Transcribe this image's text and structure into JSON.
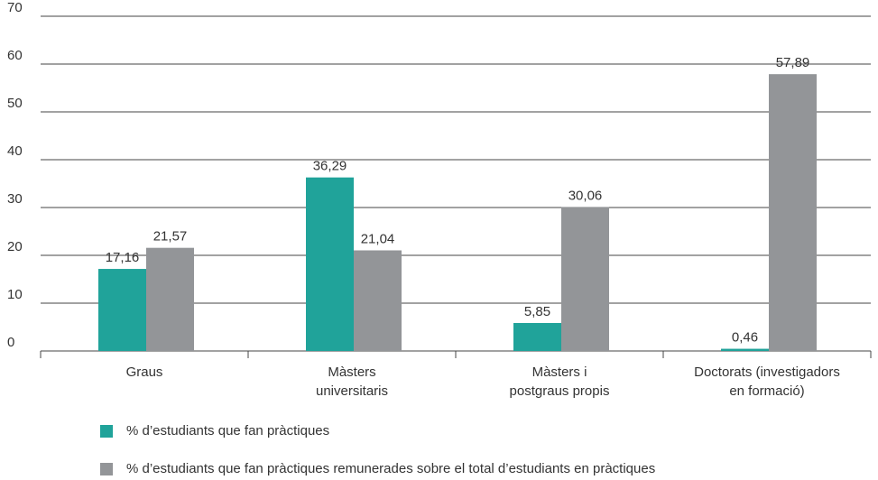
{
  "chart_data": {
    "type": "bar",
    "categories": [
      [
        "Graus"
      ],
      [
        "Màsters",
        "universitaris"
      ],
      [
        "Màsters i",
        "postgraus propis"
      ],
      [
        "Doctorats (investigadors",
        "en formació)"
      ]
    ],
    "series": [
      {
        "name": "% d’estudiants que fan pràctiques",
        "color": "#20a39a",
        "values": [
          17.16,
          36.29,
          5.85,
          0.46
        ],
        "value_labels": [
          "17,16",
          "36,29",
          "5,85",
          "0,46"
        ]
      },
      {
        "name": "% d’estudiants que fan pràctiques remunerades sobre el total d’estudiants en pràctiques",
        "color": "#939598",
        "values": [
          21.57,
          21.04,
          30.06,
          57.89
        ],
        "value_labels": [
          "21,57",
          "21,04",
          "30,06",
          "57,89"
        ]
      }
    ],
    "ylim": [
      0,
      70
    ],
    "yticks": [
      0,
      10,
      20,
      30,
      40,
      50,
      60,
      70
    ],
    "grid": true
  }
}
